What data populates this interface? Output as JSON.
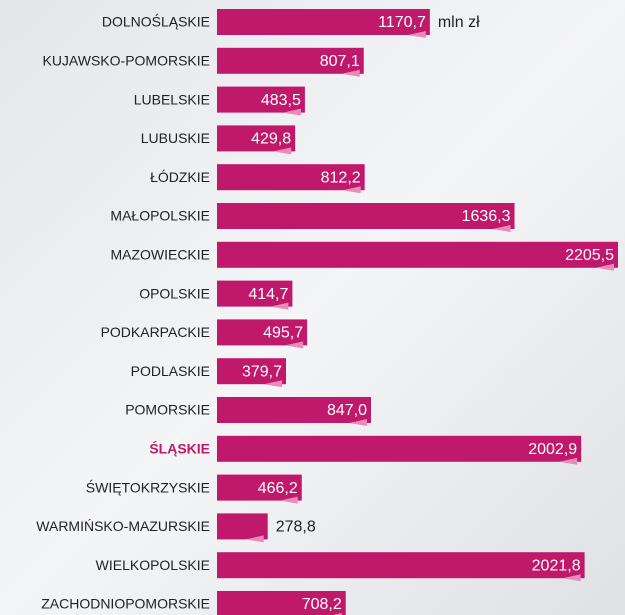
{
  "chart_data": {
    "type": "bar",
    "orientation": "horizontal",
    "categories": [
      "DOLNOŚLĄSKIE",
      "KUJAWSKO-POMORSKIE",
      "LUBELSKIE",
      "LUBUSKIE",
      "ŁÓDZKIE",
      "MAŁOPOLSKIE",
      "MAZOWIECKIE",
      "OPOLSKIE",
      "PODKARPACKIE",
      "PODLASKIE",
      "POMORSKIE",
      "ŚLĄSKIE",
      "ŚWIĘTOKRZYSKIE",
      "WARMIŃSKO-MAZURSKIE",
      "WIELKOPOLSKIE",
      "ZACHODNIOPOMORSKIE"
    ],
    "values": [
      1170.7,
      807.1,
      483.5,
      429.8,
      812.2,
      1636.3,
      2205.5,
      414.7,
      495.7,
      379.7,
      847.0,
      2002.9,
      466.2,
      278.8,
      2021.8,
      708.2
    ],
    "value_labels": [
      "1170,7",
      "807,1",
      "483,5",
      "429,8",
      "812,2",
      "1636,3",
      "2205,5",
      "414,7",
      "495,7",
      "379,7",
      "847,0",
      "2002,9",
      "466,2",
      "278,8",
      "2021,8",
      "708,2"
    ],
    "unit": "mln zł",
    "color": "#c0186a",
    "highlight": "ŚLĄSKIE",
    "highlight_color": "#c0186a"
  }
}
